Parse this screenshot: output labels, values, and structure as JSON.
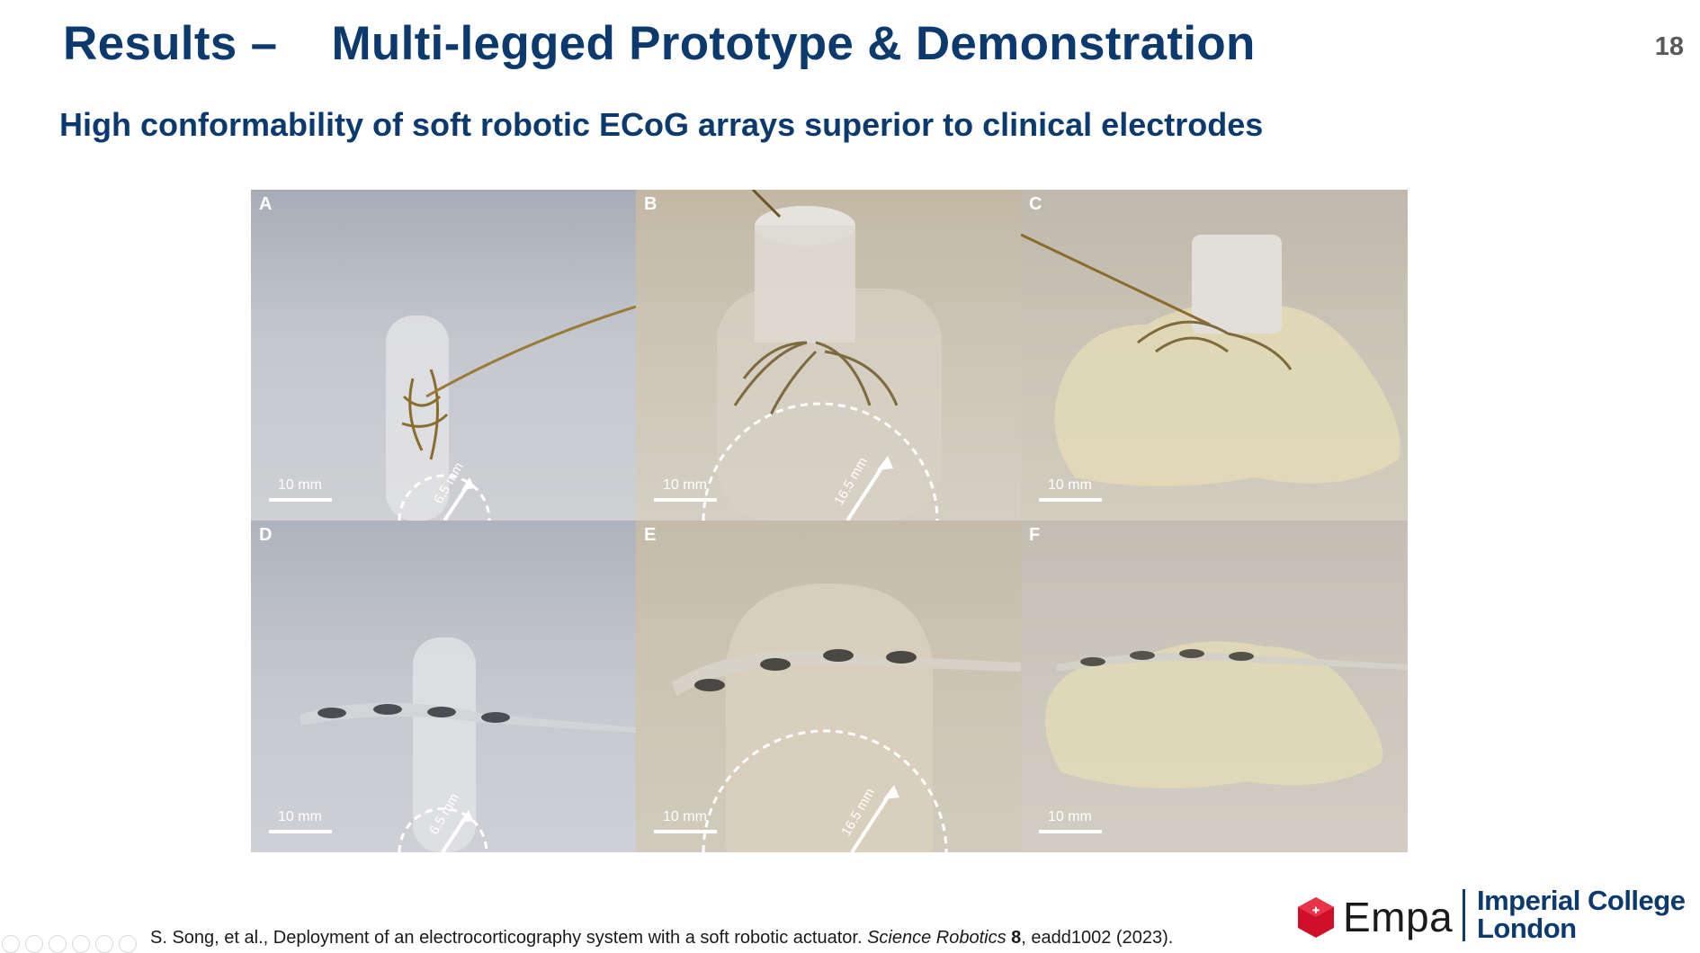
{
  "slide": {
    "title": "Results –    Multi-legged Prototype & Demonstration",
    "number": "18",
    "subtitle": "High conformability of soft robotic ECoG arrays superior to clinical electrodes"
  },
  "figure": {
    "panels": [
      {
        "letter": "A",
        "scale_label": "10 mm",
        "radius_label": "6.5 mm"
      },
      {
        "letter": "B",
        "scale_label": "10 mm",
        "radius_label": "16.5 mm"
      },
      {
        "letter": "C",
        "scale_label": "10 mm"
      },
      {
        "letter": "D",
        "scale_label": "10 mm",
        "radius_label": "6.5 mm"
      },
      {
        "letter": "E",
        "scale_label": "10 mm",
        "radius_label": "16.5 mm"
      },
      {
        "letter": "F",
        "scale_label": "10 mm"
      }
    ]
  },
  "citation": {
    "authors_title": "S. Song, et al., Deployment of an electrocorticography system with a soft robotic actuator. ",
    "journal": "Science Robotics",
    "volume": "8",
    "rest": ", eadd1002 (2023)."
  },
  "logos": {
    "empa": "Empa",
    "imperial_line1": "Imperial College",
    "imperial_line2": "London",
    "colors": {
      "navy": "#0c3a6e",
      "empa_red": "#d0102a"
    }
  }
}
